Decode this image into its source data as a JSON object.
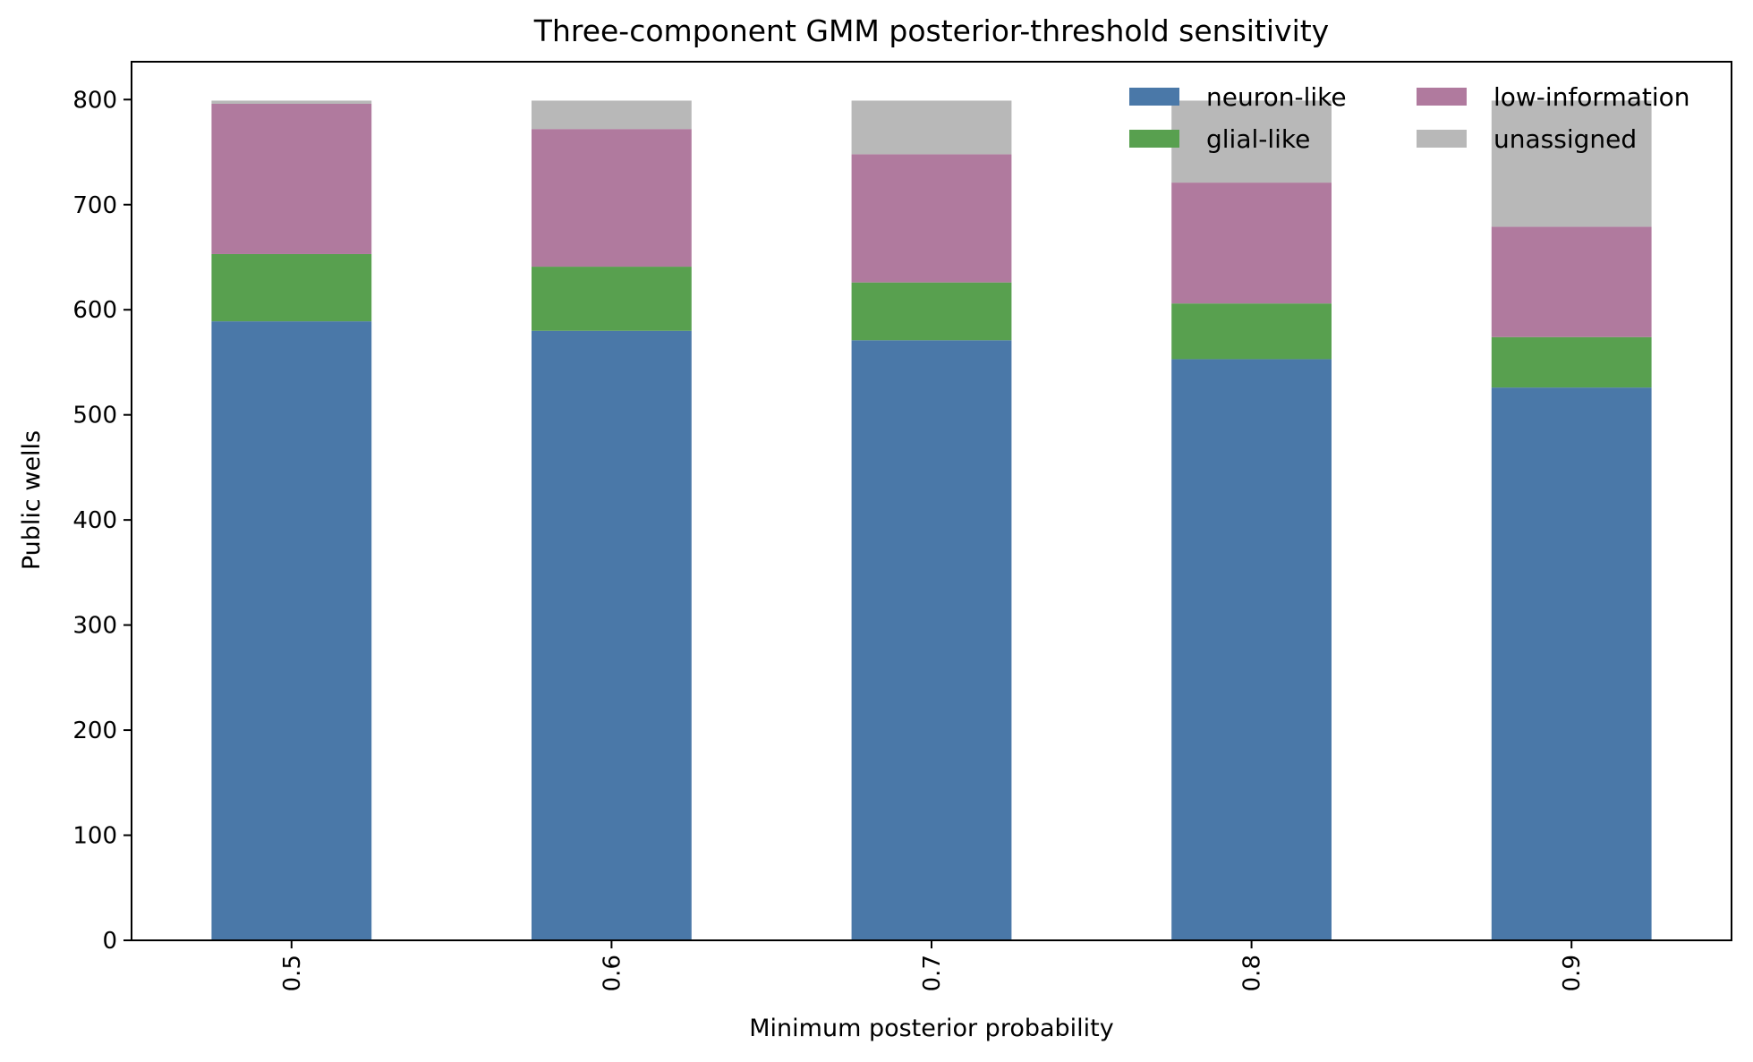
{
  "chart_data": {
    "type": "bar",
    "stacked": true,
    "title": "Three-component GMM posterior-threshold sensitivity",
    "xlabel": "Minimum posterior probability",
    "ylabel": "Public wells",
    "categories": [
      "0.5",
      "0.6",
      "0.7",
      "0.8",
      "0.9"
    ],
    "ylim": [
      0,
      836
    ],
    "yticks": [
      0,
      100,
      200,
      300,
      400,
      500,
      600,
      700,
      800
    ],
    "grid": false,
    "legend_position": "top-right",
    "series": [
      {
        "name": "neuron-like",
        "color": "#4a78a8",
        "values": [
          589,
          580,
          571,
          553,
          526
        ]
      },
      {
        "name": "glial-like",
        "color": "#58a04f",
        "values": [
          64,
          61,
          55,
          53,
          48
        ]
      },
      {
        "name": "low-information",
        "color": "#b07a9e",
        "values": [
          143,
          131,
          122,
          115,
          105
        ]
      },
      {
        "name": "unassigned",
        "color": "#b8b8b8",
        "values": [
          3,
          27,
          51,
          78,
          120
        ]
      }
    ]
  }
}
